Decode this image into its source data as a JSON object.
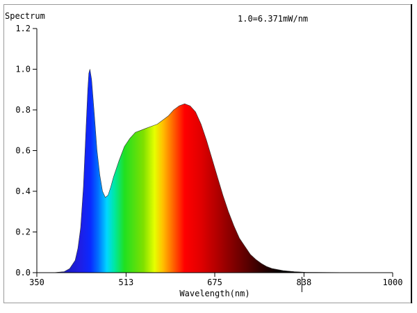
{
  "chart_data": {
    "type": "area",
    "title": "Spectrum",
    "annotation": "1.0=6.371mW/nm",
    "xlabel": "Wavelength(nm)",
    "ylabel": "",
    "xlim": [
      350,
      1000
    ],
    "ylim": [
      0,
      1.2
    ],
    "x_ticks": [
      "350",
      "513",
      "675",
      "838",
      "1000"
    ],
    "y_ticks": [
      "0.0",
      "0.2",
      "0.4",
      "0.6",
      "0.8",
      "1.0",
      "1.2"
    ],
    "grid": false,
    "series": [
      {
        "x": [
          350,
          380,
          400,
          410,
          420,
          425,
          430,
          435,
          440,
          443,
          445,
          447,
          450,
          455,
          460,
          465,
          470,
          475,
          480,
          485,
          490,
          500,
          510,
          520,
          530,
          540,
          550,
          560,
          570,
          580,
          590,
          600,
          610,
          620,
          630,
          640,
          650,
          660,
          670,
          680,
          690,
          700,
          710,
          720,
          730,
          740,
          750,
          760,
          770,
          780,
          800,
          820,
          840,
          880,
          950,
          1000
        ],
        "values": [
          0.0,
          0.0,
          0.005,
          0.02,
          0.06,
          0.12,
          0.22,
          0.42,
          0.72,
          0.9,
          0.98,
          1.0,
          0.95,
          0.78,
          0.6,
          0.48,
          0.4,
          0.37,
          0.38,
          0.42,
          0.47,
          0.55,
          0.62,
          0.66,
          0.69,
          0.7,
          0.71,
          0.72,
          0.73,
          0.75,
          0.77,
          0.8,
          0.82,
          0.83,
          0.82,
          0.79,
          0.73,
          0.65,
          0.56,
          0.47,
          0.38,
          0.3,
          0.23,
          0.17,
          0.13,
          0.09,
          0.065,
          0.045,
          0.03,
          0.02,
          0.01,
          0.005,
          0.002,
          0.001,
          0.0,
          0.0
        ]
      }
    ]
  }
}
